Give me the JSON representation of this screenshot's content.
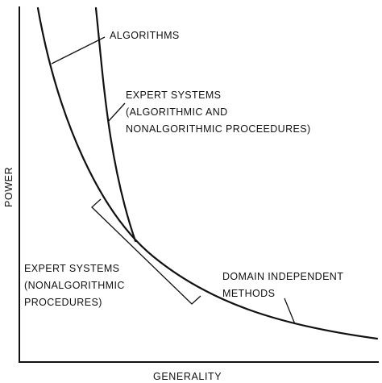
{
  "labels": {
    "algorithms": "ALGORITHMS",
    "expert_systems_1": {
      "line1": "EXPERT SYSTEMS",
      "line2": "(ALGORITHMIC AND",
      "line3": "NONALGORITHMIC PROCEEDURES)"
    },
    "expert_systems_2": {
      "line1": "EXPERT SYSTEMS",
      "line2": "(NONALGORITHMIC",
      "line3": "PROCEDURES)"
    },
    "domain_independent": {
      "line1": "DOMAIN INDEPENDENT",
      "line2": "METHODS"
    }
  },
  "axes": {
    "x": "GENERALITY",
    "y": "POWER"
  },
  "colors": {
    "ink": "#111111",
    "background": "#ffffff"
  }
}
